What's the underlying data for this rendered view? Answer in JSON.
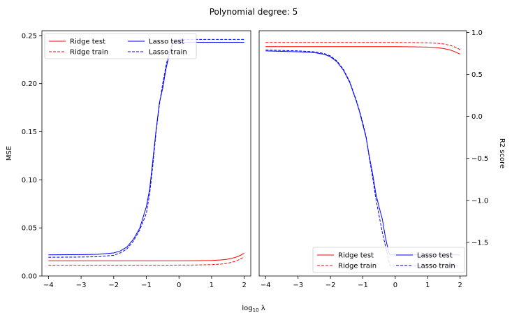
{
  "figure": {
    "suptitle": "Polynomial degree: 5",
    "xlabel": "log$_{10}$ $\\lambda$"
  },
  "chart_data": [
    {
      "type": "line",
      "title": "",
      "xlabel": "log10 λ",
      "ylabel": "MSE",
      "xlim": [
        -4.2,
        2.2
      ],
      "ylim": [
        0.0,
        0.255
      ],
      "xticks": [
        -4,
        -3,
        -2,
        -1,
        0,
        1,
        2
      ],
      "yticks": [
        0.0,
        0.05,
        0.1,
        0.15,
        0.2,
        0.25
      ],
      "ytick_labels": [
        "0.00",
        "0.05",
        "0.10",
        "0.15",
        "0.20",
        "0.25"
      ],
      "legend_position": "upper-left",
      "legend_columns": 2,
      "grid": false,
      "series": [
        {
          "name": "Ridge test",
          "color": "#ff0000",
          "dash": "solid",
          "x": [
            -4,
            -3,
            -2,
            -1,
            -0.5,
            0,
            0.5,
            1,
            1.3,
            1.5,
            1.7,
            1.8,
            1.9,
            2
          ],
          "y": [
            0.0158,
            0.0158,
            0.0158,
            0.0158,
            0.0158,
            0.0158,
            0.0159,
            0.0162,
            0.0167,
            0.0175,
            0.019,
            0.0203,
            0.0218,
            0.0238
          ]
        },
        {
          "name": "Ridge train",
          "color": "#ff0000",
          "dash": "dashed",
          "x": [
            -4,
            -3,
            -2,
            -1,
            -0.5,
            0,
            0.5,
            1,
            1.3,
            1.5,
            1.7,
            1.8,
            1.9,
            2
          ],
          "y": [
            0.0112,
            0.0112,
            0.0112,
            0.0112,
            0.0112,
            0.0113,
            0.0114,
            0.0118,
            0.0124,
            0.0133,
            0.015,
            0.0163,
            0.018,
            0.02
          ]
        },
        {
          "name": "Lasso test",
          "color": "#0000ff",
          "dash": "solid",
          "x": [
            -4,
            -3,
            -2.5,
            -2,
            -1.8,
            -1.6,
            -1.4,
            -1.2,
            -1.0,
            -0.9,
            -0.8,
            -0.7,
            -0.6,
            -0.5,
            -0.4,
            -0.3,
            -0.2,
            -0.15,
            -0.1,
            0,
            0.5,
            1,
            1.5,
            2
          ],
          "y": [
            0.022,
            0.0222,
            0.0225,
            0.024,
            0.026,
            0.03,
            0.038,
            0.05,
            0.072,
            0.09,
            0.12,
            0.152,
            0.18,
            0.195,
            0.215,
            0.23,
            0.24,
            0.243,
            0.243,
            0.243,
            0.243,
            0.243,
            0.243,
            0.243
          ]
        },
        {
          "name": "Lasso train",
          "color": "#0000ff",
          "dash": "dashed",
          "x": [
            -4,
            -3,
            -2.5,
            -2,
            -1.8,
            -1.6,
            -1.4,
            -1.2,
            -1.0,
            -0.9,
            -0.8,
            -0.7,
            -0.6,
            -0.5,
            -0.4,
            -0.3,
            -0.2,
            -0.15,
            -0.1,
            0,
            0.5,
            1,
            1.5,
            2
          ],
          "y": [
            0.0195,
            0.0197,
            0.02,
            0.0215,
            0.024,
            0.028,
            0.036,
            0.048,
            0.065,
            0.085,
            0.115,
            0.15,
            0.178,
            0.2,
            0.218,
            0.233,
            0.242,
            0.246,
            0.246,
            0.246,
            0.246,
            0.246,
            0.246,
            0.246
          ]
        }
      ]
    },
    {
      "type": "line",
      "title": "",
      "xlabel": "log10 λ",
      "ylabel": "R2 score",
      "ylabel_side": "right",
      "xlim": [
        -4.2,
        2.2
      ],
      "ylim": [
        -1.9,
        1.02
      ],
      "xticks": [
        -4,
        -3,
        -2,
        -1,
        0,
        1,
        2
      ],
      "yticks": [
        1.0,
        0.5,
        0.0,
        -0.5,
        -1.0,
        -1.5
      ],
      "ytick_labels": [
        "1.0",
        "0.5",
        "0.0",
        "−0.5",
        "−1.0",
        "−1.5"
      ],
      "legend_position": "lower-right",
      "legend_columns": 2,
      "grid": false,
      "series": [
        {
          "name": "Ridge test",
          "color": "#ff0000",
          "dash": "solid",
          "x": [
            -4,
            -3,
            -2,
            -1,
            0,
            0.5,
            1,
            1.3,
            1.5,
            1.7,
            1.8,
            1.9,
            2
          ],
          "y": [
            0.83,
            0.83,
            0.83,
            0.83,
            0.83,
            0.829,
            0.825,
            0.818,
            0.808,
            0.79,
            0.776,
            0.76,
            0.742
          ]
        },
        {
          "name": "Ridge train",
          "color": "#ff0000",
          "dash": "dashed",
          "x": [
            -4,
            -3,
            -2,
            -1,
            0,
            0.5,
            1,
            1.3,
            1.5,
            1.7,
            1.8,
            1.9,
            2
          ],
          "y": [
            0.88,
            0.88,
            0.88,
            0.88,
            0.88,
            0.879,
            0.876,
            0.87,
            0.862,
            0.845,
            0.832,
            0.815,
            0.795
          ]
        },
        {
          "name": "Lasso test",
          "color": "#0000ff",
          "dash": "solid",
          "x": [
            -4,
            -3.5,
            -3,
            -2.5,
            -2.2,
            -2,
            -1.8,
            -1.6,
            -1.4,
            -1.2,
            -1.1,
            -1.0,
            -0.9,
            -0.8,
            -0.7,
            -0.6,
            -0.5,
            -0.4,
            -0.3,
            -0.2,
            -0.15,
            -0.1,
            0,
            1,
            2
          ],
          "y": [
            0.78,
            0.775,
            0.77,
            0.76,
            0.74,
            0.71,
            0.65,
            0.55,
            0.4,
            0.18,
            0.05,
            -0.1,
            -0.25,
            -0.48,
            -0.68,
            -0.92,
            -1.08,
            -1.22,
            -1.45,
            -1.62,
            -1.65,
            -1.65,
            -1.65,
            -1.65,
            -1.65
          ]
        },
        {
          "name": "Lasso train",
          "color": "#0000ff",
          "dash": "dashed",
          "x": [
            -4,
            -3.5,
            -3,
            -2.5,
            -2.2,
            -2,
            -1.8,
            -1.6,
            -1.4,
            -1.2,
            -1.1,
            -1.0,
            -0.9,
            -0.8,
            -0.7,
            -0.6,
            -0.5,
            -0.4,
            -0.3,
            -0.2,
            -0.15,
            -0.1,
            0,
            1,
            2
          ],
          "y": [
            0.79,
            0.785,
            0.78,
            0.77,
            0.75,
            0.72,
            0.66,
            0.56,
            0.41,
            0.19,
            0.06,
            -0.08,
            -0.24,
            -0.5,
            -0.72,
            -0.98,
            -1.18,
            -1.38,
            -1.55,
            -1.72,
            -1.78,
            -1.78,
            -1.78,
            -1.78,
            -1.78
          ]
        }
      ]
    }
  ]
}
